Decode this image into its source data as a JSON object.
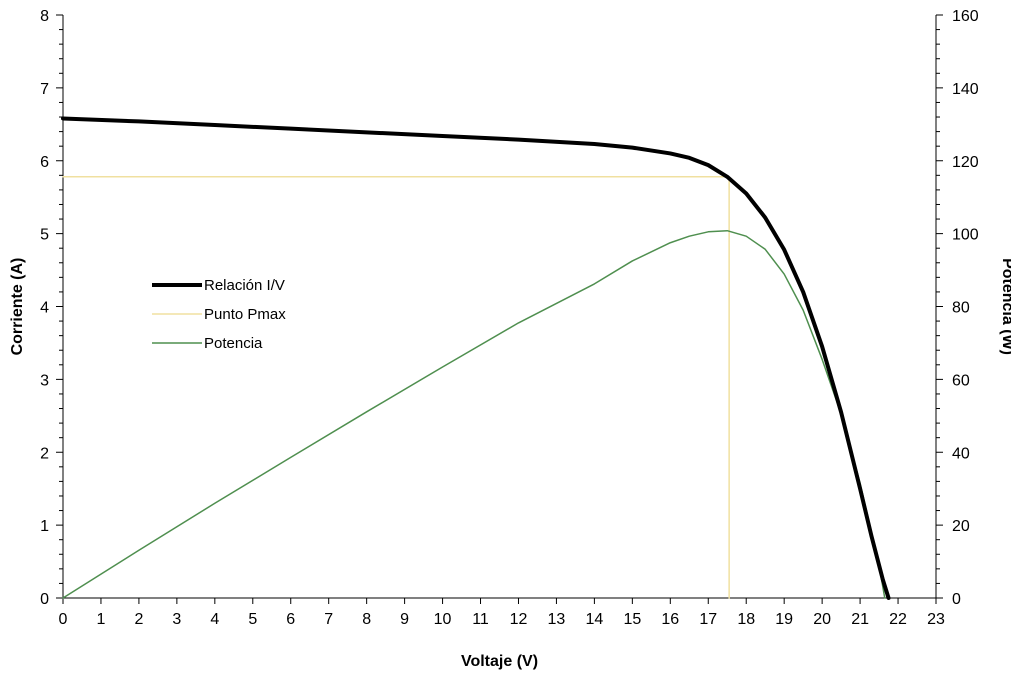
{
  "chart_data": {
    "type": "line",
    "title": "",
    "xlabel": "Voltaje (V)",
    "ylabel": "Corriente (A)",
    "y2label": "Potencia (W)",
    "xlim": [
      0,
      23
    ],
    "ylim": [
      0,
      8
    ],
    "y2lim": [
      0,
      160
    ],
    "x_ticks": [
      "0",
      "1",
      "2",
      "3",
      "4",
      "5",
      "6",
      "7",
      "8",
      "9",
      "10",
      "11",
      "12",
      "13",
      "14",
      "15",
      "16",
      "17",
      "18",
      "19",
      "20",
      "21",
      "22",
      "23"
    ],
    "y_ticks": [
      "0",
      "1",
      "2",
      "3",
      "4",
      "5",
      "6",
      "7",
      "8"
    ],
    "y2_ticks": [
      "0",
      "20",
      "40",
      "60",
      "80",
      "100",
      "120",
      "140",
      "160"
    ],
    "grid": false,
    "legend_position": "left",
    "series": [
      {
        "name": "Relación I/V",
        "axis": "left",
        "color": "#000000",
        "x": [
          0,
          2,
          4,
          6,
          8,
          10,
          12,
          14,
          15,
          16,
          16.5,
          17,
          17.5,
          18,
          18.5,
          19,
          19.5,
          20,
          20.5,
          21,
          21.3,
          21.6,
          21.75
        ],
        "y": [
          6.58,
          6.54,
          6.49,
          6.44,
          6.39,
          6.34,
          6.29,
          6.23,
          6.18,
          6.1,
          6.04,
          5.94,
          5.78,
          5.55,
          5.22,
          4.78,
          4.2,
          3.45,
          2.55,
          1.5,
          0.85,
          0.25,
          0
        ]
      },
      {
        "name": "Punto Pmax",
        "axis": "left",
        "color": "#f0e0a0",
        "x": [
          0,
          17.55,
          17.55
        ],
        "y": [
          5.78,
          5.78,
          0
        ]
      },
      {
        "name": "Potencia",
        "axis": "right",
        "color": "#4f8f4f",
        "x": [
          0,
          2,
          4,
          6,
          8,
          10,
          12,
          14,
          15,
          16,
          16.5,
          17,
          17.5,
          18,
          18.5,
          19,
          19.5,
          20,
          20.5,
          21,
          21.3,
          21.55,
          21.65
        ],
        "y": [
          0,
          13.1,
          26,
          38.6,
          51.1,
          63.4,
          75.5,
          86.2,
          92.5,
          97.5,
          99.3,
          100.5,
          100.8,
          99.3,
          95.7,
          88.9,
          79,
          65.5,
          50.5,
          31.5,
          18,
          6,
          0
        ]
      }
    ]
  }
}
